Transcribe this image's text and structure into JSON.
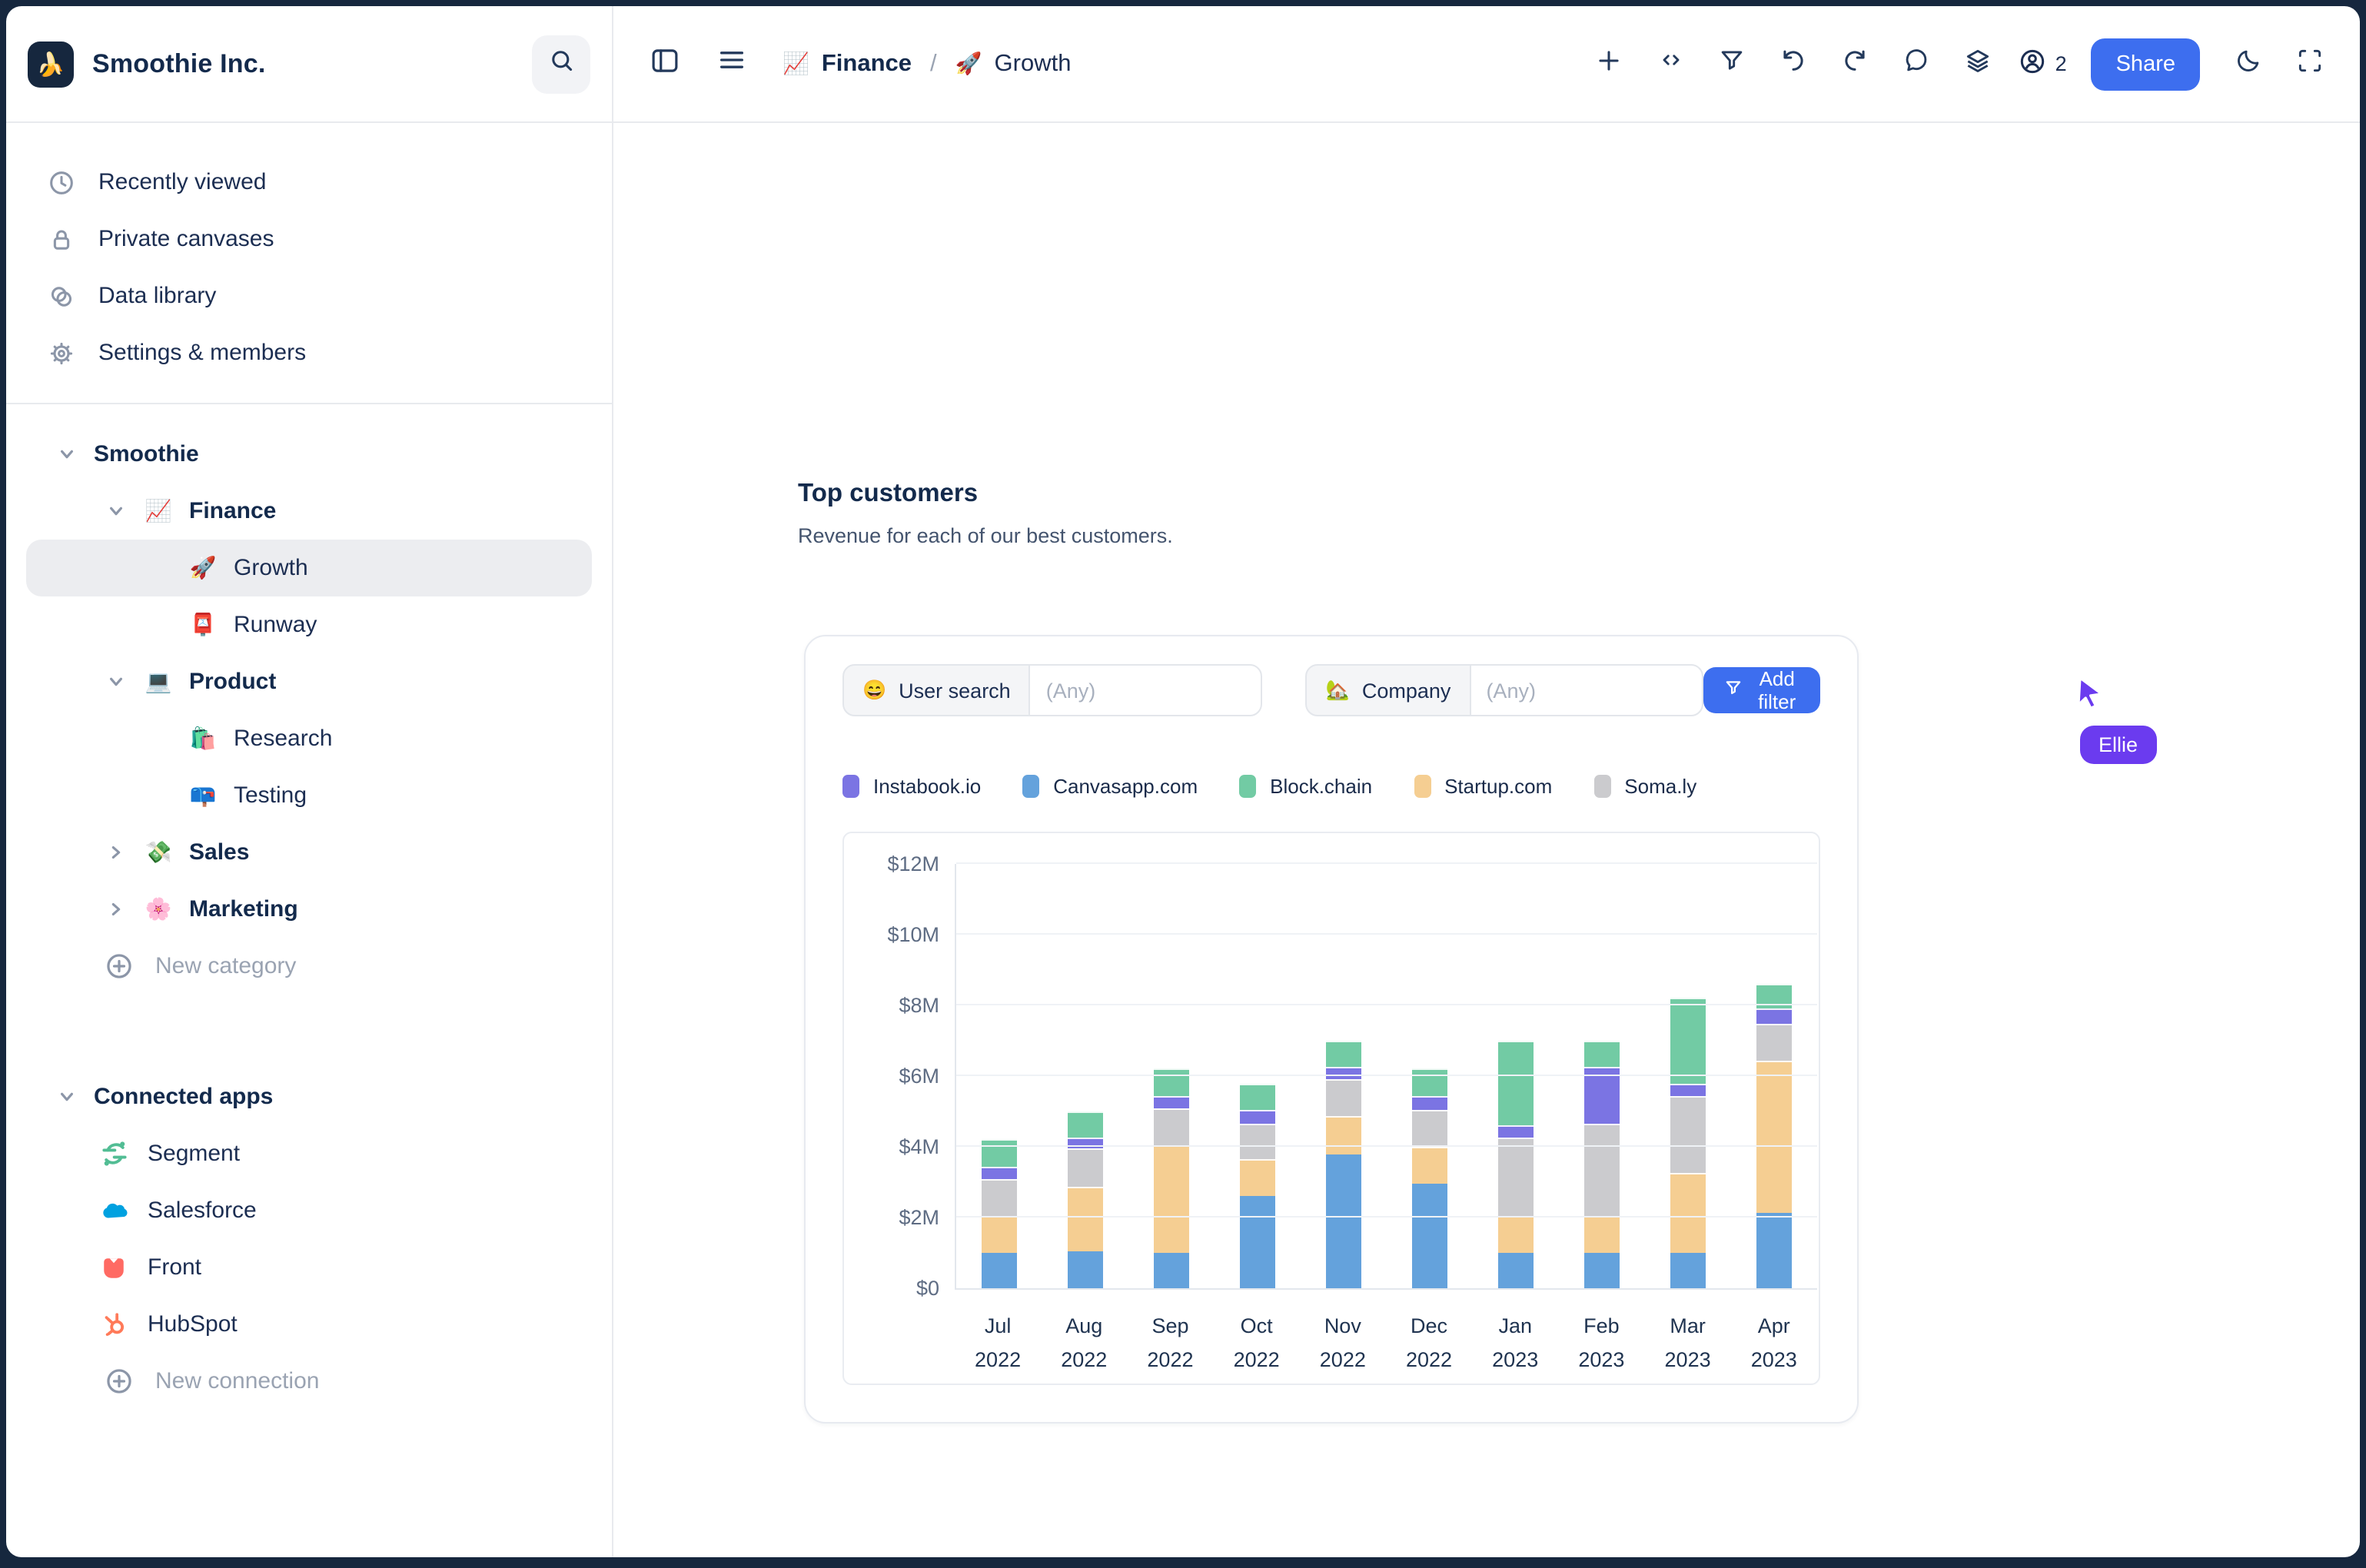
{
  "window": {
    "frame_color": "#16273E"
  },
  "header": {
    "company": "Smoothie Inc.",
    "logo_emoji": "🍌",
    "breadcrumb": {
      "section_emoji": "📈",
      "section": "Finance",
      "separator": "/",
      "page_emoji": "🚀",
      "page": "Growth"
    },
    "toolbar": {
      "users_count": "2",
      "share_label": "Share"
    }
  },
  "sidebar": {
    "library": [
      {
        "icon": "clock-icon",
        "label": "Recently viewed"
      },
      {
        "icon": "lock-icon",
        "label": "Private canvases"
      },
      {
        "icon": "data-icon",
        "label": "Data library"
      },
      {
        "icon": "gear-icon",
        "label": "Settings & members"
      }
    ],
    "tree": [
      {
        "label": "Smoothie",
        "level": 0,
        "bold": true,
        "chevron": "down"
      },
      {
        "label": "Finance",
        "emoji": "📈",
        "level": 1,
        "bold": true,
        "chevron": "down"
      },
      {
        "label": "Growth",
        "emoji": "🚀",
        "level": 2,
        "selected": true
      },
      {
        "label": "Runway",
        "emoji": "📮",
        "level": 2
      },
      {
        "label": "Product",
        "emoji": "💻",
        "level": 1,
        "bold": true,
        "chevron": "down"
      },
      {
        "label": "Research",
        "emoji": "🛍️",
        "level": 2
      },
      {
        "label": "Testing",
        "emoji": "📪",
        "level": 2
      },
      {
        "label": "Sales",
        "emoji": "💸",
        "level": 1,
        "bold": true,
        "chevron": "right"
      },
      {
        "label": "Marketing",
        "emoji": "🌸",
        "level": 1,
        "bold": true,
        "chevron": "right"
      },
      {
        "label": "New category",
        "level": 1,
        "muted": true,
        "icon": "plus-circle-icon"
      }
    ],
    "connected": {
      "header": "Connected apps",
      "apps": [
        {
          "label": "Segment",
          "logo": "segment"
        },
        {
          "label": "Salesforce",
          "logo": "salesforce"
        },
        {
          "label": "Front",
          "logo": "front"
        },
        {
          "label": "HubSpot",
          "logo": "hubspot"
        },
        {
          "label": "New connection",
          "logo": "plus",
          "muted": true
        }
      ]
    }
  },
  "main": {
    "title": "Top customers",
    "subtitle": "Revenue for each of our best customers.",
    "filters": [
      {
        "emoji": "😄",
        "label": "User search",
        "placeholder": "(Any)"
      },
      {
        "emoji": "🏡",
        "label": "Company",
        "placeholder": "(Any)"
      }
    ],
    "add_filter_label": "Add filter",
    "presence": {
      "name": "Ellie",
      "color": "#6B3BEF"
    }
  },
  "chart_data": {
    "type": "bar",
    "stacked": true,
    "title": "Top customers",
    "categories": [
      {
        "month": "Jul",
        "year": "2022"
      },
      {
        "month": "Aug",
        "year": "2022"
      },
      {
        "month": "Sep",
        "year": "2022"
      },
      {
        "month": "Oct",
        "year": "2022"
      },
      {
        "month": "Nov",
        "year": "2022"
      },
      {
        "month": "Dec",
        "year": "2022"
      },
      {
        "month": "Jan",
        "year": "2023"
      },
      {
        "month": "Feb",
        "year": "2023"
      },
      {
        "month": "Mar",
        "year": "2023"
      },
      {
        "month": "Apr",
        "year": "2023"
      }
    ],
    "unit": "USD millions",
    "series": [
      {
        "name": "Canvasapp.com",
        "color": "#64A2DC",
        "values": [
          1.0,
          1.05,
          1.0,
          2.6,
          3.8,
          2.95,
          1.0,
          1.0,
          1.0,
          2.15
        ]
      },
      {
        "name": "Startup.com",
        "color": "#F5CE92",
        "values": [
          1.05,
          1.8,
          3.05,
          1.05,
          1.05,
          1.05,
          1.05,
          1.05,
          2.25,
          4.3
        ]
      },
      {
        "name": "Soma.ly",
        "color": "#CBCBCE",
        "values": [
          1.05,
          1.1,
          1.05,
          1.0,
          1.05,
          1.05,
          2.2,
          2.6,
          2.2,
          1.05
        ]
      },
      {
        "name": "Instabook.io",
        "color": "#7B74E3",
        "values": [
          0.35,
          0.3,
          0.35,
          0.4,
          0.35,
          0.4,
          0.35,
          1.6,
          0.35,
          0.4
        ]
      },
      {
        "name": "Block.chain",
        "color": "#72CBA4",
        "values": [
          0.75,
          0.75,
          0.75,
          0.75,
          0.75,
          0.75,
          2.4,
          0.75,
          2.4,
          0.7
        ]
      }
    ],
    "legend_order": [
      "Instabook.io",
      "Canvasapp.com",
      "Block.chain",
      "Startup.com",
      "Soma.ly"
    ],
    "ylim": [
      0,
      12
    ],
    "yticks": [
      {
        "value": 0,
        "label": "$0"
      },
      {
        "value": 2,
        "label": "$2M"
      },
      {
        "value": 4,
        "label": "$4M"
      },
      {
        "value": 6,
        "label": "$6M"
      },
      {
        "value": 8,
        "label": "$8M"
      },
      {
        "value": 10,
        "label": "$10M"
      },
      {
        "value": 12,
        "label": "$12M"
      }
    ],
    "grid": true,
    "legend_position": "top"
  }
}
